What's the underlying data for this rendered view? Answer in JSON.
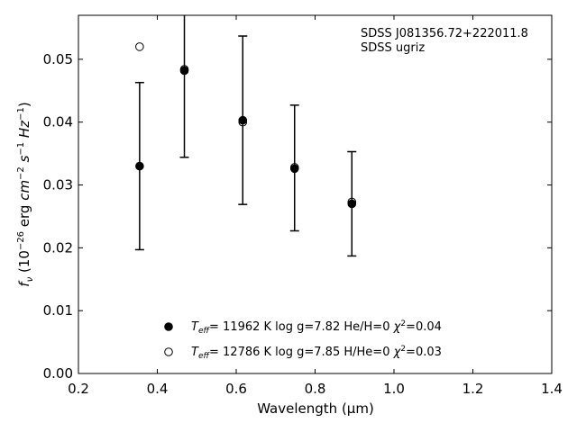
{
  "chart_data": {
    "type": "scatter",
    "xlabel": "Wavelength (μm)",
    "xlim": [
      0.2,
      1.4
    ],
    "ylim": [
      0.0,
      0.057
    ],
    "xticks": [
      0.2,
      0.4,
      0.6,
      0.8,
      1.0,
      1.2,
      1.4
    ],
    "xtick_labels": [
      "0.2",
      "0.4",
      "0.6",
      "0.8",
      "1.0",
      "1.2",
      "1.4"
    ],
    "yticks": [
      0.0,
      0.01,
      0.02,
      0.03,
      0.04,
      0.05
    ],
    "ytick_labels": [
      "0.00",
      "0.01",
      "0.02",
      "0.03",
      "0.04",
      "0.05"
    ],
    "annotation": [
      "SDSS J081356.72+222011.8",
      "SDSS ugriz"
    ],
    "observed": {
      "x": [
        0.3551,
        0.4686,
        0.6166,
        0.748,
        0.8932
      ],
      "y": [
        0.033,
        0.048,
        0.0403,
        0.0327,
        0.027
      ],
      "yerr": [
        0.0133,
        0.0136,
        0.0134,
        0.01,
        0.0083
      ]
    },
    "series": [
      {
        "name": "T_eff = 11962 K  log g=7.82  He/H=0  χ²=0.04",
        "marker": "filled-circle",
        "x": [
          0.3551,
          0.4686,
          0.6166,
          0.748,
          0.8932
        ],
        "y": [
          0.033,
          0.0482,
          0.0403,
          0.0326,
          0.027
        ]
      },
      {
        "name": "T_eff = 12786 K  log g=7.85  H/He=0  χ²=0.03",
        "marker": "open-circle",
        "x": [
          0.3551,
          0.4686,
          0.6166,
          0.748,
          0.8932
        ],
        "y": [
          0.052,
          0.0484,
          0.04,
          0.0328,
          0.0273
        ]
      }
    ],
    "legend": [
      {
        "T": "11962",
        "logg": "7.82",
        "comp": "He/H=0",
        "chi": "0.04"
      },
      {
        "T": "12786",
        "logg": "7.85",
        "comp": "H/He=0",
        "chi": "0.03"
      }
    ],
    "legend_placement": "bottom-center",
    "grid": false,
    "colors": {
      "marker": "#000000",
      "errorbar": "#000000"
    }
  }
}
